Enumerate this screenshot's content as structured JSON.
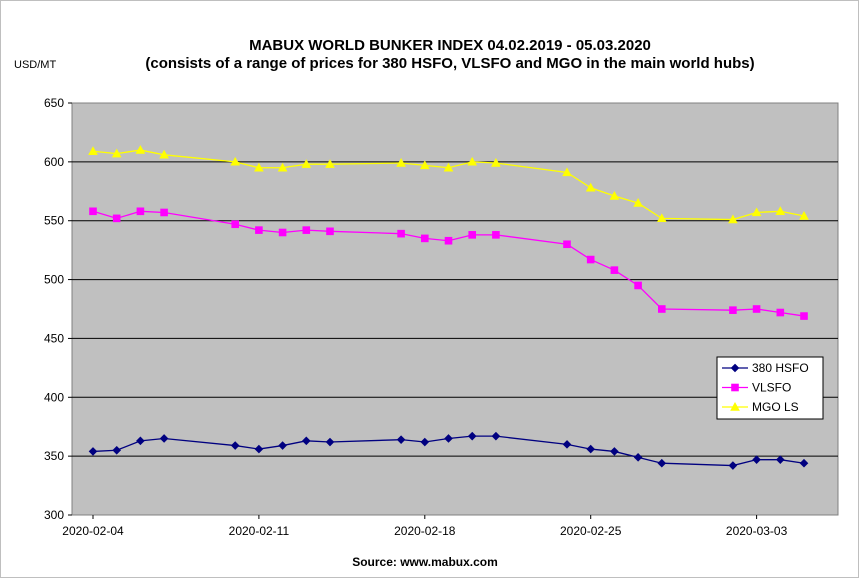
{
  "chart_data": {
    "type": "line",
    "title": "MABUX WORLD BUNKER INDEX 04.02.2019 - 05.03.2020",
    "subtitle": "(consists of a range of prices for 380 HSFO, VLSFO and MGO in the main world hubs)",
    "ylabel": "USD/MT",
    "source": "Source: www.mabux.com",
    "ylim": [
      300,
      650
    ],
    "yticks": [
      "300",
      "350",
      "400",
      "450",
      "500",
      "550",
      "600",
      "650"
    ],
    "xtick_labels": [
      "2020-02-04",
      "2020-02-11",
      "2020-02-18",
      "2020-02-25",
      "2020-03-03"
    ],
    "grid": true,
    "legend_position": "right",
    "x": [
      "2020-02-04",
      "2020-02-05",
      "2020-02-06",
      "2020-02-07",
      "2020-02-10",
      "2020-02-11",
      "2020-02-12",
      "2020-02-13",
      "2020-02-14",
      "2020-02-17",
      "2020-02-18",
      "2020-02-19",
      "2020-02-20",
      "2020-02-21",
      "2020-02-24",
      "2020-02-25",
      "2020-02-26",
      "2020-02-27",
      "2020-02-28",
      "2020-03-02",
      "2020-03-03",
      "2020-03-04",
      "2020-03-05"
    ],
    "series": [
      {
        "name": "380 HSFO",
        "color": "#000080",
        "marker": "diamond",
        "values": [
          354,
          355,
          363,
          365,
          359,
          356,
          359,
          363,
          362,
          364,
          362,
          365,
          367,
          367,
          360,
          356,
          354,
          349,
          344,
          342,
          347,
          347,
          344
        ]
      },
      {
        "name": "VLSFO",
        "color": "#ff00ff",
        "marker": "square",
        "values": [
          558,
          552,
          558,
          557,
          547,
          542,
          540,
          542,
          541,
          539,
          535,
          533,
          538,
          538,
          530,
          517,
          508,
          495,
          475,
          474,
          475,
          472,
          469
        ]
      },
      {
        "name": "MGO LS",
        "color": "#ffff00",
        "marker": "triangle",
        "values": [
          609,
          607,
          610,
          606,
          600,
          595,
          595,
          598,
          598,
          599,
          597,
          595,
          600,
          599,
          591,
          578,
          571,
          565,
          552,
          551,
          557,
          558,
          554
        ]
      }
    ]
  }
}
